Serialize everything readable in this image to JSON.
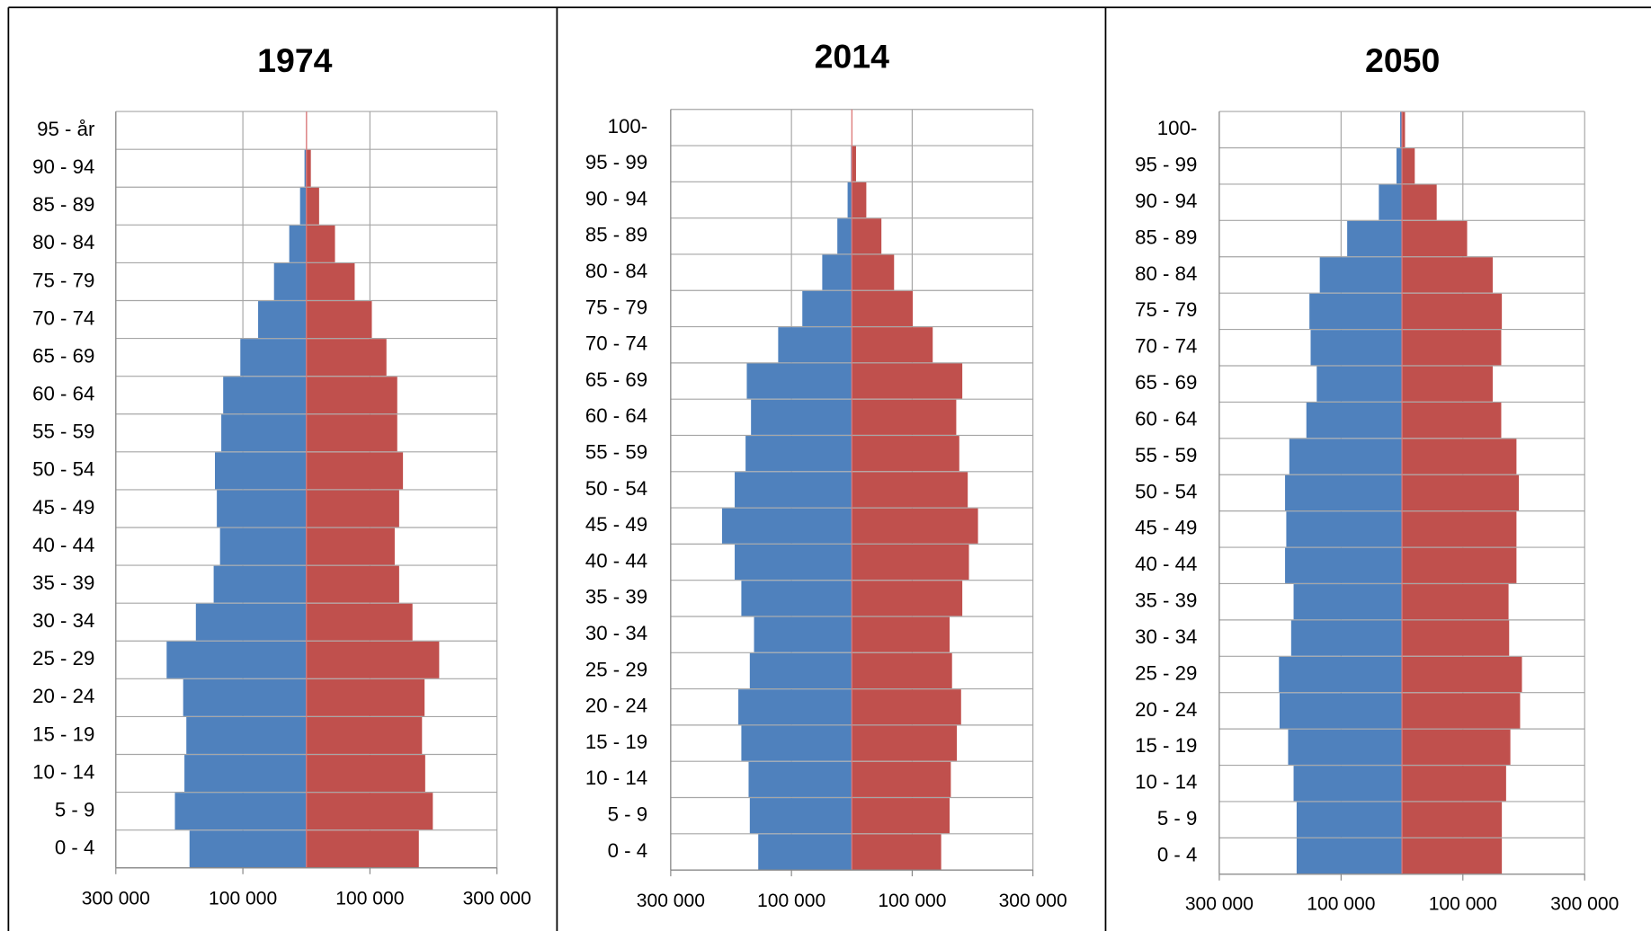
{
  "chart_data": [
    {
      "type": "bar",
      "orientation": "horizontal",
      "title": "1974",
      "categories": [
        "0 - 4",
        "5 - 9",
        "10 - 14",
        "15 - 19",
        "20 - 24",
        "25 - 29",
        "30 - 34",
        "35 - 39",
        "40 - 44",
        "45 - 49",
        "50 - 54",
        "55 - 59",
        "60 - 64",
        "65 - 69",
        "70 - 74",
        "75 - 79",
        "80 - 84",
        "85 - 89",
        "90 - 94",
        "95 - år"
      ],
      "series": [
        {
          "color": "#4f81bd",
          "values": [
            -184000,
            -207000,
            -192000,
            -189000,
            -194000,
            -220000,
            -174000,
            -146000,
            -136000,
            -141000,
            -144000,
            -134000,
            -131000,
            -104000,
            -76000,
            -51000,
            -27000,
            -10000,
            -3000,
            -500
          ]
        },
        {
          "color": "#c0504d",
          "values": [
            177000,
            199000,
            187000,
            182000,
            186000,
            209000,
            167000,
            146000,
            139000,
            146000,
            152000,
            143000,
            143000,
            126000,
            103000,
            76000,
            45000,
            20000,
            7000,
            1000
          ]
        }
      ],
      "xlim": [
        -300000,
        300000
      ],
      "xticks": [
        {
          "value": -300000,
          "label": "300 000"
        },
        {
          "value": -100000,
          "label": "100 000"
        },
        {
          "value": 100000,
          "label": "100 000"
        },
        {
          "value": 300000,
          "label": "300 000"
        }
      ],
      "grid": true
    },
    {
      "type": "bar",
      "orientation": "horizontal",
      "title": "2014",
      "categories": [
        "0 - 4",
        "5 - 9",
        "10 - 14",
        "15 - 19",
        "20 - 24",
        "25 - 29",
        "30 - 34",
        "35 - 39",
        "40 - 44",
        "45 - 49",
        "50 - 54",
        "55 - 59",
        "60 - 64",
        "65 - 69",
        "70 - 74",
        "75 - 79",
        "80 - 84",
        "85 - 89",
        "90 - 94",
        "95 - 99",
        "100-"
      ],
      "series": [
        {
          "color": "#4f81bd",
          "values": [
            -155000,
            -169000,
            -171000,
            -183000,
            -188000,
            -169000,
            -162000,
            -183000,
            -194000,
            -215000,
            -194000,
            -176000,
            -167000,
            -174000,
            -122000,
            -82000,
            -49000,
            -24000,
            -7000,
            -1500,
            -200
          ]
        },
        {
          "color": "#c0504d",
          "values": [
            148000,
            162000,
            164000,
            174000,
            181000,
            166000,
            162000,
            183000,
            194000,
            209000,
            192000,
            178000,
            173000,
            183000,
            134000,
            101000,
            70000,
            49000,
            24000,
            7000,
            1000
          ]
        }
      ],
      "xlim": [
        -300000,
        300000
      ],
      "xticks": [
        {
          "value": -300000,
          "label": "300 000"
        },
        {
          "value": -100000,
          "label": "100 000"
        },
        {
          "value": 100000,
          "label": "100 000"
        },
        {
          "value": 300000,
          "label": "300 000"
        }
      ],
      "grid": true
    },
    {
      "type": "bar",
      "orientation": "horizontal",
      "title": "2050",
      "categories": [
        "0 - 4",
        "5 - 9",
        "10 - 14",
        "15 - 19",
        "20 - 24",
        "25 - 29",
        "30 - 34",
        "35 - 39",
        "40 - 44",
        "45 - 49",
        "50 - 54",
        "55 - 59",
        "60 - 64",
        "65 - 69",
        "70 - 74",
        "75 - 79",
        "80 - 84",
        "85 - 89",
        "90 - 94",
        "95 - 99",
        "100-"
      ],
      "series": [
        {
          "color": "#4f81bd",
          "values": [
            -173000,
            -173000,
            -178000,
            -187000,
            -201000,
            -202000,
            -182000,
            -178000,
            -192000,
            -190000,
            -192000,
            -185000,
            -157000,
            -140000,
            -150000,
            -152000,
            -135000,
            -90000,
            -38000,
            -9000,
            -3000
          ]
        },
        {
          "color": "#c0504d",
          "values": [
            164000,
            164000,
            171000,
            178000,
            194000,
            197000,
            176000,
            175000,
            188000,
            188000,
            192000,
            188000,
            163000,
            149000,
            163000,
            164000,
            149000,
            107000,
            57000,
            21000,
            5000
          ]
        }
      ],
      "xlim": [
        -300000,
        300000
      ],
      "xticks": [
        {
          "value": -300000,
          "label": "300 000"
        },
        {
          "value": -100000,
          "label": "100 000"
        },
        {
          "value": 100000,
          "label": "100 000"
        },
        {
          "value": 300000,
          "label": "300 000"
        }
      ],
      "grid": true
    }
  ]
}
